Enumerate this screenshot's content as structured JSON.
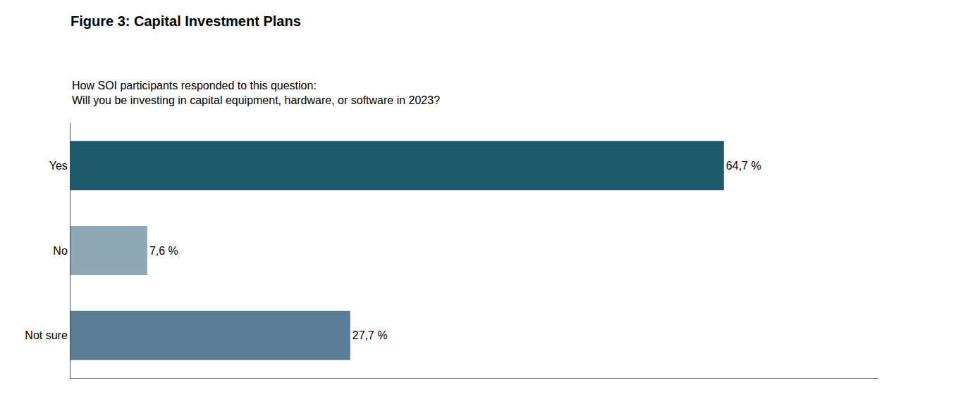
{
  "chart_data": {
    "type": "bar",
    "orientation": "horizontal",
    "title": "Figure 3: Capital Investment Plans",
    "subtitle": "How SOI participants responded to this question:\nWill you be investing in capital equipment, hardware, or software in 2023?",
    "categories": [
      "Yes",
      "No",
      "Not sure"
    ],
    "values": [
      64.7,
      7.6,
      27.7
    ],
    "value_labels": [
      "64,7 %",
      "7,6 %",
      "27,7 %"
    ],
    "data_labels": true,
    "colors": [
      "#1e5a6e",
      "#8fa8b8",
      "#5a7f94"
    ],
    "xlim": [
      0,
      80
    ],
    "grid": false,
    "tick_labels": "y"
  }
}
